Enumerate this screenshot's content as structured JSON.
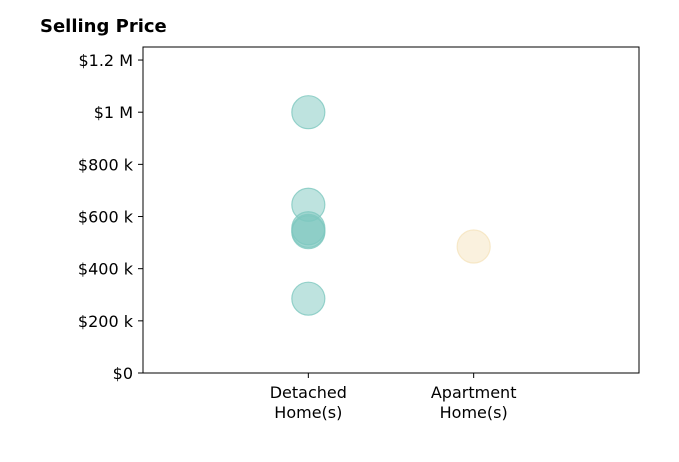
{
  "chart_data": {
    "type": "scatter",
    "title": "Selling Price",
    "xlabel": "",
    "ylabel": "",
    "categories": [
      "Detached\nHome(s)",
      "Apartment\nHome(s)"
    ],
    "ylim": [
      0,
      1250000
    ],
    "yticks": [
      0,
      200000,
      400000,
      600000,
      800000,
      1000000,
      1200000
    ],
    "ytick_labels": [
      "$0",
      "$200 k",
      "$400 k",
      "$600 k",
      "$800 k",
      "$1 M",
      "$1.2 M"
    ],
    "grid": false,
    "series": [
      {
        "category": "Detached\nHome(s)",
        "color": "#7ec8bf",
        "values": [
          1000000,
          645000,
          555000,
          545000,
          540000,
          285000
        ]
      },
      {
        "category": "Apartment\nHome(s)",
        "color": "#f5e3bd",
        "values": [
          485000
        ]
      }
    ]
  }
}
